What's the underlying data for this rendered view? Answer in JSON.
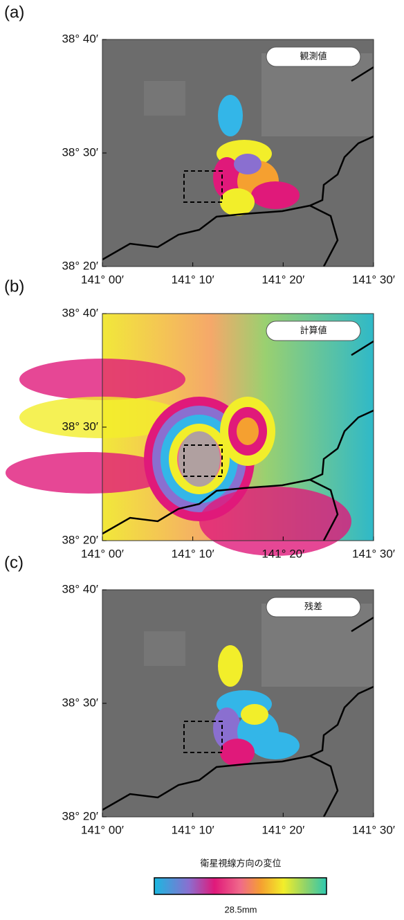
{
  "panels": [
    {
      "label": "(a)",
      "box_label": "観測値"
    },
    {
      "label": "(b)",
      "box_label": "計算値"
    },
    {
      "label": "(c)",
      "box_label": "残差"
    }
  ],
  "y_ticks": [
    "38° 40′",
    "38° 30′",
    "38° 20′"
  ],
  "x_ticks": [
    "141° 00′",
    "141° 10′",
    "141° 20′",
    "141° 30′"
  ],
  "colorbar": {
    "title": "衛星視線方向の変位",
    "label": "28.5mm"
  }
}
